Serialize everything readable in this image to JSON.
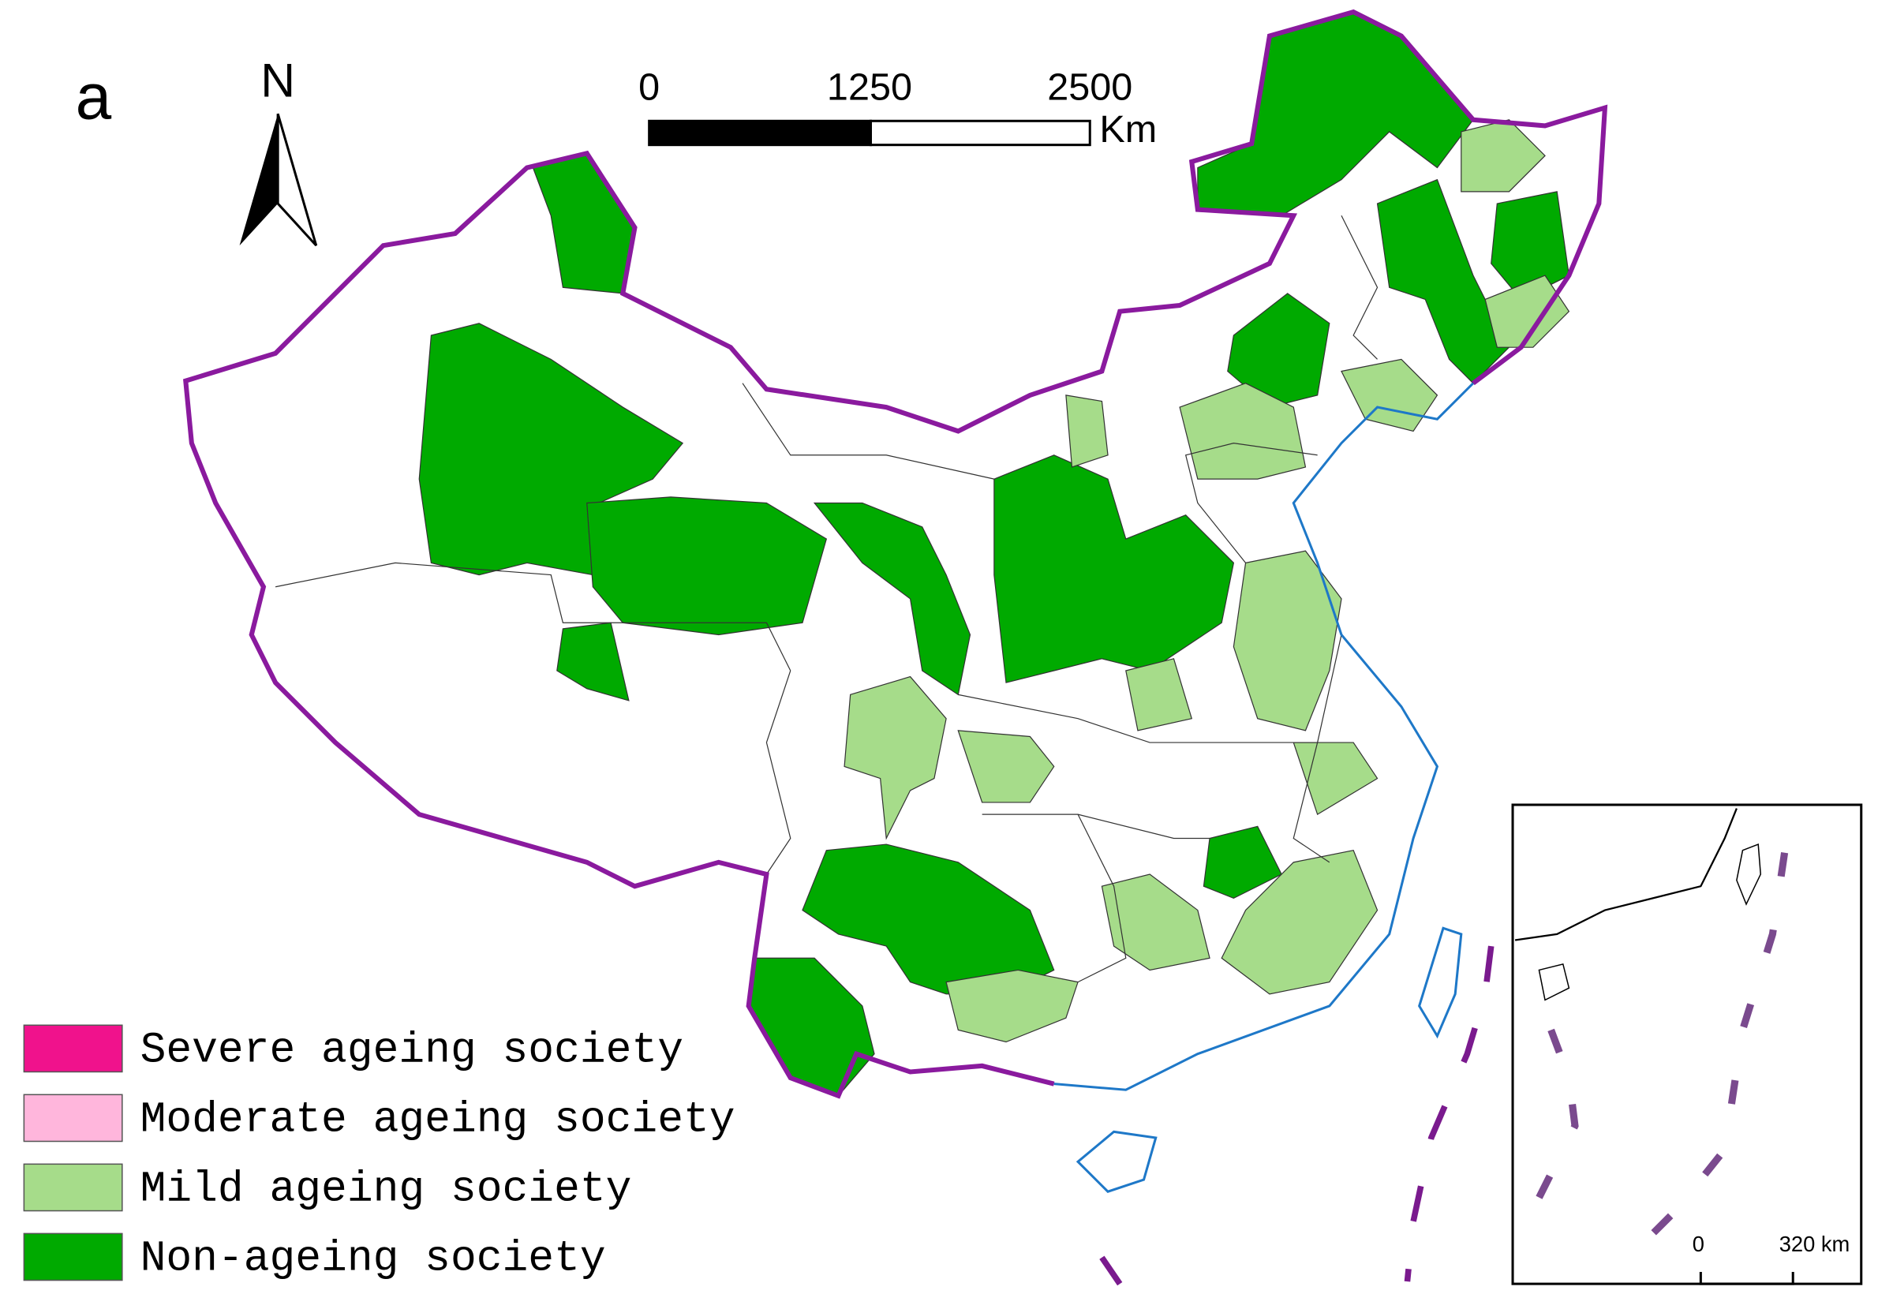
{
  "panel_label": "a",
  "north_arrow": "N",
  "scale_bar": {
    "ticks": [
      0,
      1250,
      2500
    ],
    "unit": "Km"
  },
  "legend": [
    {
      "label": "Severe ageing society",
      "color": "#f0128c"
    },
    {
      "label": "Moderate ageing society",
      "color": "#ffb6dc"
    },
    {
      "label": "Mild ageing society",
      "color": "#a6dc8a"
    },
    {
      "label": "Non-ageing society",
      "color": "#00aa00"
    }
  ],
  "inset": {
    "scale": [
      "0",
      "320 km"
    ]
  }
}
